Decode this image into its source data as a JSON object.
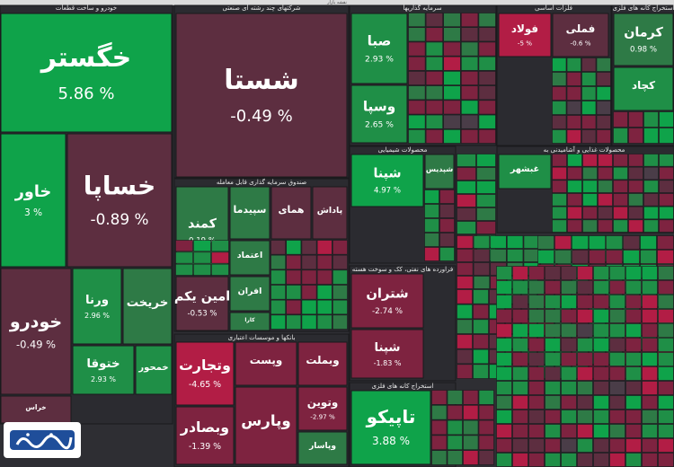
{
  "window": {
    "title": "نقشه بازار"
  },
  "colors": {
    "up": "#13a14a",
    "down": "#9c1f3f",
    "neutral": "#4a3d48"
  },
  "chart_data": {
    "type": "treemap",
    "sectors": [
      {
        "name": "خودرو و ساخت قطعات",
        "tiles": [
          {
            "symbol": "خگستر",
            "change": 5.86,
            "display": "5.86 %"
          },
          {
            "symbol": "خاور",
            "change": 3.0,
            "display": "3 %"
          },
          {
            "symbol": "خساپا",
            "change": -0.89,
            "display": "-0.89 %"
          },
          {
            "symbol": "خودرو",
            "change": -0.49,
            "display": "-0.49 %"
          },
          {
            "symbol": "ورنا",
            "change": 2.96,
            "display": "2.96 %"
          },
          {
            "symbol": "خریخت",
            "change": 0.5,
            "display": ""
          },
          {
            "symbol": "ختوقا",
            "change": 2.93,
            "display": "2.93 %"
          },
          {
            "symbol": "خمحور",
            "change": 1.2,
            "display": ""
          },
          {
            "symbol": "خراس",
            "change": -0.6,
            "display": ""
          }
        ]
      },
      {
        "name": "شرکتهای چند رشته ای صنعتی",
        "tiles": [
          {
            "symbol": "شستا",
            "change": -0.49,
            "display": "-0.49 %"
          }
        ]
      },
      {
        "name": "سرمایه گذاریها",
        "tiles": [
          {
            "symbol": "صبا",
            "change": 2.93,
            "display": "2.93 %"
          },
          {
            "symbol": "وسپا",
            "change": 2.65,
            "display": "2.65 %"
          }
        ]
      },
      {
        "name": "فلزات اساسی",
        "tiles": [
          {
            "symbol": "فولاد",
            "change": -5.0,
            "display": "-5 %"
          },
          {
            "symbol": "فملی",
            "change": -0.6,
            "display": "-0.6 %"
          }
        ]
      },
      {
        "name": "استخراج کانه های فلزی",
        "tiles": [
          {
            "symbol": "کرمان",
            "change": 0.98,
            "display": "0.98 %"
          },
          {
            "symbol": "کچاد",
            "change": 1.1,
            "display": ""
          }
        ]
      },
      {
        "name": "صندوق سرمایه گذاری قابل معامله",
        "tiles": [
          {
            "symbol": "کمند",
            "change": 0.19,
            "display": "0.19 %"
          },
          {
            "symbol": "سپیدما",
            "change": 0.15,
            "display": ""
          },
          {
            "symbol": "همای",
            "change": -0.8,
            "display": ""
          },
          {
            "symbol": "پاداش",
            "change": -0.3,
            "display": ""
          },
          {
            "symbol": "اعتماد",
            "change": 0.2,
            "display": ""
          },
          {
            "symbol": "امین یکم",
            "change": -0.53,
            "display": "-0.53 %"
          },
          {
            "symbol": "افران",
            "change": 0.4,
            "display": ""
          },
          {
            "symbol": "کارا",
            "change": 0.1,
            "display": ""
          }
        ]
      },
      {
        "name": "بانکها و موسسات اعتباری",
        "tiles": [
          {
            "symbol": "وتجارت",
            "change": -4.65,
            "display": "-4.65 %"
          },
          {
            "symbol": "وبصادر",
            "change": -1.39,
            "display": "-1.39 %"
          },
          {
            "symbol": "وبملت",
            "change": -2.0,
            "display": ""
          },
          {
            "symbol": "وپست",
            "change": -2.7,
            "display": ""
          },
          {
            "symbol": "وپارس",
            "change": -1.5,
            "display": ""
          },
          {
            "symbol": "وتوین",
            "change": -2.97,
            "display": "-2.97 %"
          },
          {
            "symbol": "وپاسار",
            "change": 0.8,
            "display": ""
          }
        ]
      },
      {
        "name": "محصولات شیمیایی",
        "tiles": [
          {
            "symbol": "شپنا",
            "change": 4.97,
            "display": "4.97 %"
          },
          {
            "symbol": "شپدیس",
            "change": 0.8,
            "display": ""
          }
        ]
      },
      {
        "name": "فراورده های نفتی، کک و سوخت هسته",
        "tiles": [
          {
            "symbol": "شتران",
            "change": -2.74,
            "display": "-2.74 %"
          },
          {
            "symbol": "شپنا",
            "change": -1.83,
            "display": "-1.83 %"
          }
        ]
      },
      {
        "name": "استخراج کانه های فلزی",
        "tiles": [
          {
            "symbol": "تاپیکو",
            "change": 3.88,
            "display": "3.88 %"
          }
        ]
      },
      {
        "name": "محصولات غذایی و آشامیدنی به",
        "tiles": [
          {
            "symbol": "غبشهر",
            "change": 1.2,
            "display": ""
          }
        ]
      }
    ]
  }
}
